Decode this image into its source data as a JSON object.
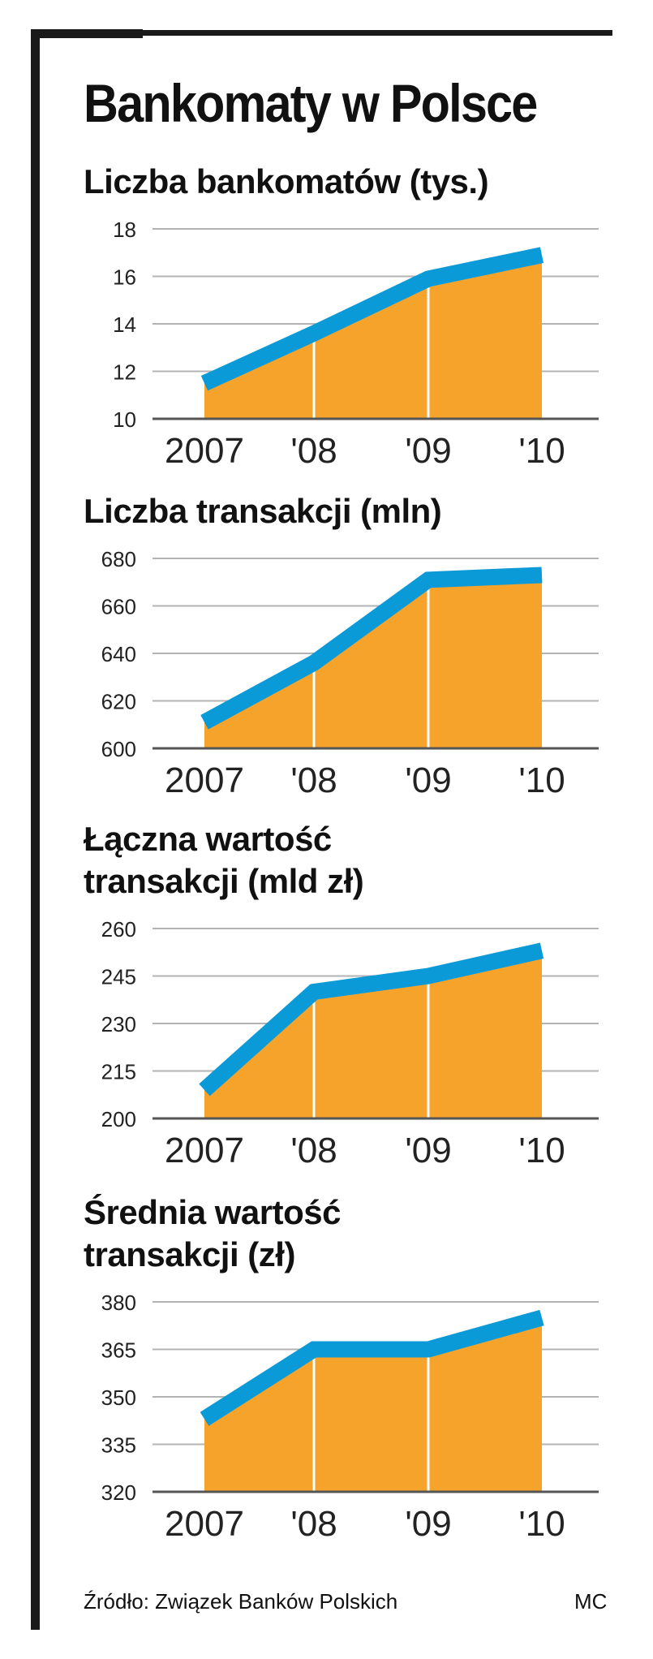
{
  "title": "Bankomaty w Polsce",
  "source": "Źródło: Związek Banków Polskich",
  "credit": "MC",
  "colors": {
    "fill": "#f5a32b",
    "line": "#0a9ad8",
    "frame": "#1a1a1a",
    "grid": "#b3b3b3"
  },
  "chart_data": [
    {
      "type": "area",
      "title": "Liczba bankomatów (tys.)",
      "categories": [
        "2007",
        "'08",
        "'09",
        "'10"
      ],
      "values": [
        11.5,
        13.6,
        15.9,
        16.9
      ],
      "yticks": [
        "10",
        "12",
        "14",
        "16",
        "18"
      ],
      "ylim": [
        10,
        18
      ],
      "grid": true
    },
    {
      "type": "area",
      "title": "Liczba transakcji (mln)",
      "categories": [
        "2007",
        "'08",
        "'09",
        "'10"
      ],
      "values": [
        611,
        636,
        671,
        673
      ],
      "yticks": [
        "600",
        "620",
        "640",
        "660",
        "680"
      ],
      "ylim": [
        600,
        680
      ],
      "grid": true
    },
    {
      "type": "area",
      "title": "Łączna wartość transakcji (mld zł)",
      "categories": [
        "2007",
        "'08",
        "'09",
        "'10"
      ],
      "values": [
        209,
        240,
        245,
        253
      ],
      "yticks": [
        "200",
        "215",
        "230",
        "245",
        "260"
      ],
      "ylim": [
        200,
        260
      ],
      "grid": true
    },
    {
      "type": "area",
      "title": "Średnia wartość transakcji (zł)",
      "categories": [
        "2007",
        "'08",
        "'09",
        "'10"
      ],
      "values": [
        343,
        365,
        365,
        375
      ],
      "yticks": [
        "320",
        "335",
        "350",
        "365",
        "380"
      ],
      "ylim": [
        320,
        380
      ],
      "grid": true
    }
  ]
}
